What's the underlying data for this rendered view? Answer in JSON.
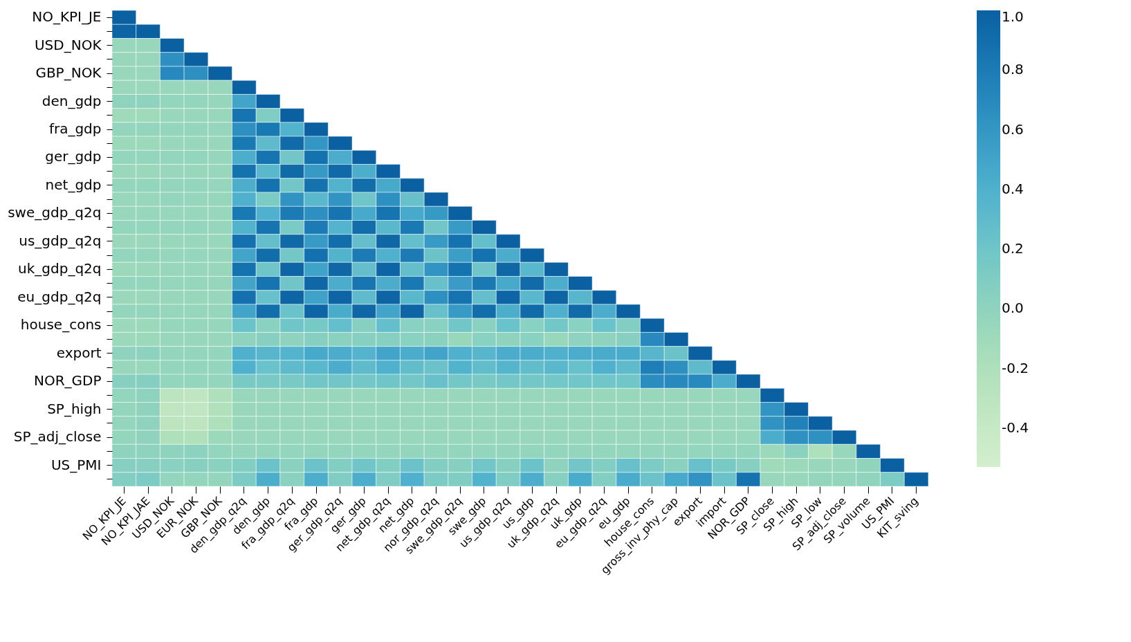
{
  "chart_data": {
    "type": "heatmap",
    "categories": [
      "NO_KPI_JE",
      "NO_KPI_JAE",
      "USD_NOK",
      "EUR_NOK",
      "GBP_NOK",
      "den_gdp_q2q",
      "den_gdp",
      "fra_gdp_q2q",
      "fra_gdp",
      "ger_gdp_q2q",
      "ger_gdp",
      "net_gdp_q2q",
      "net_gdp",
      "nor_gdp_q2q",
      "swe_gdp_q2q",
      "swe_gdp",
      "us_gdp_q2q",
      "us_gdp",
      "uk_gdp_q2q",
      "uk_gdp",
      "eu_gdp_q2q",
      "eu_gdp",
      "house_cons",
      "gross_inv_phy_cap",
      "export",
      "import",
      "NOR_GDP",
      "SP_close",
      "SP_high",
      "SP_low",
      "SP_adj_close",
      "SP_volume",
      "US_PMI",
      "KIT_sving"
    ],
    "y_categories": [
      "NO_KPI_JE",
      null,
      "USD_NOK",
      null,
      "GBP_NOK",
      null,
      "den_gdp",
      null,
      "fra_gdp",
      null,
      "ger_gdp",
      null,
      "net_gdp",
      null,
      "swe_gdp_q2q",
      null,
      "us_gdp_q2q",
      null,
      "uk_gdp_q2q",
      null,
      "eu_gdp_q2q",
      null,
      "house_cons",
      null,
      "export",
      null,
      "NOR_GDP",
      null,
      "SP_high",
      null,
      "SP_adj_close",
      null,
      "US_PMI",
      null
    ],
    "clim": [
      -0.53,
      1.0
    ],
    "cticks": [
      {
        "value": -0.4,
        "label": "-0.4"
      },
      {
        "value": -0.2,
        "label": "-0.2"
      },
      {
        "value": 0,
        "label": "0.0"
      },
      {
        "value": 0.2,
        "label": "0.2"
      },
      {
        "value": 0.4,
        "label": "0.4"
      },
      {
        "value": 0.6,
        "label": "0.6"
      },
      {
        "value": 0.8,
        "label": "0.8"
      },
      {
        "value": 1,
        "label": "1.0"
      }
    ],
    "cells": [
      [
        1,
        null,
        null,
        null,
        null,
        null,
        null,
        null,
        null,
        null,
        null,
        null,
        null,
        null,
        null,
        null,
        null,
        null,
        null,
        null,
        null,
        null,
        null,
        null,
        null,
        null,
        null,
        null,
        null,
        null,
        null,
        null,
        null,
        null
      ],
      [
        0.97,
        1,
        null,
        null,
        null,
        null,
        null,
        null,
        null,
        null,
        null,
        null,
        null,
        null,
        null,
        null,
        null,
        null,
        null,
        null,
        null,
        null,
        null,
        null,
        null,
        null,
        null,
        null,
        null,
        null,
        null,
        null,
        null,
        null
      ],
      [
        -0.05,
        -0.05,
        1,
        null,
        null,
        null,
        null,
        null,
        null,
        null,
        null,
        null,
        null,
        null,
        null,
        null,
        null,
        null,
        null,
        null,
        null,
        null,
        null,
        null,
        null,
        null,
        null,
        null,
        null,
        null,
        null,
        null,
        null,
        null
      ],
      [
        -0.05,
        -0.05,
        0.65,
        1,
        null,
        null,
        null,
        null,
        null,
        null,
        null,
        null,
        null,
        null,
        null,
        null,
        null,
        null,
        null,
        null,
        null,
        null,
        null,
        null,
        null,
        null,
        null,
        null,
        null,
        null,
        null,
        null,
        null,
        null
      ],
      [
        -0.05,
        -0.05,
        0.7,
        0.65,
        1,
        null,
        null,
        null,
        null,
        null,
        null,
        null,
        null,
        null,
        null,
        null,
        null,
        null,
        null,
        null,
        null,
        null,
        null,
        null,
        null,
        null,
        null,
        null,
        null,
        null,
        null,
        null,
        null,
        null
      ],
      [
        -0.07,
        -0.07,
        -0.05,
        -0.05,
        -0.05,
        1,
        null,
        null,
        null,
        null,
        null,
        null,
        null,
        null,
        null,
        null,
        null,
        null,
        null,
        null,
        null,
        null,
        null,
        null,
        null,
        null,
        null,
        null,
        null,
        null,
        null,
        null,
        null,
        null
      ],
      [
        0.0,
        0.0,
        -0.03,
        -0.02,
        -0.04,
        0.5,
        1,
        null,
        null,
        null,
        null,
        null,
        null,
        null,
        null,
        null,
        null,
        null,
        null,
        null,
        null,
        null,
        null,
        null,
        null,
        null,
        null,
        null,
        null,
        null,
        null,
        null,
        null,
        null
      ],
      [
        -0.1,
        -0.1,
        -0.05,
        -0.05,
        -0.05,
        0.85,
        0.1,
        1,
        null,
        null,
        null,
        null,
        null,
        null,
        null,
        null,
        null,
        null,
        null,
        null,
        null,
        null,
        null,
        null,
        null,
        null,
        null,
        null,
        null,
        null,
        null,
        null,
        null,
        null
      ],
      [
        -0.02,
        -0.02,
        -0.03,
        -0.03,
        -0.04,
        0.65,
        0.82,
        0.38,
        1,
        null,
        null,
        null,
        null,
        null,
        null,
        null,
        null,
        null,
        null,
        null,
        null,
        null,
        null,
        null,
        null,
        null,
        null,
        null,
        null,
        null,
        null,
        null,
        null,
        null
      ],
      [
        -0.08,
        -0.08,
        -0.05,
        -0.05,
        -0.05,
        0.82,
        0.3,
        0.92,
        0.6,
        1,
        null,
        null,
        null,
        null,
        null,
        null,
        null,
        null,
        null,
        null,
        null,
        null,
        null,
        null,
        null,
        null,
        null,
        null,
        null,
        null,
        null,
        null,
        null,
        null
      ],
      [
        -0.02,
        -0.02,
        -0.03,
        -0.03,
        -0.04,
        0.42,
        0.85,
        0.18,
        0.87,
        0.43,
        1,
        null,
        null,
        null,
        null,
        null,
        null,
        null,
        null,
        null,
        null,
        null,
        null,
        null,
        null,
        null,
        null,
        null,
        null,
        null,
        null,
        null,
        null,
        null
      ],
      [
        -0.07,
        -0.07,
        -0.05,
        -0.05,
        -0.05,
        0.87,
        0.33,
        0.93,
        0.58,
        0.93,
        0.42,
        1,
        null,
        null,
        null,
        null,
        null,
        null,
        null,
        null,
        null,
        null,
        null,
        null,
        null,
        null,
        null,
        null,
        null,
        null,
        null,
        null,
        null,
        null
      ],
      [
        -0.02,
        -0.02,
        -0.03,
        -0.03,
        -0.04,
        0.42,
        0.87,
        0.18,
        0.87,
        0.38,
        0.9,
        0.45,
        1,
        null,
        null,
        null,
        null,
        null,
        null,
        null,
        null,
        null,
        null,
        null,
        null,
        null,
        null,
        null,
        null,
        null,
        null,
        null,
        null,
        null
      ],
      [
        -0.05,
        -0.05,
        -0.03,
        -0.04,
        -0.04,
        0.4,
        0.12,
        0.63,
        0.33,
        0.62,
        0.2,
        0.65,
        0.25,
        1,
        null,
        null,
        null,
        null,
        null,
        null,
        null,
        null,
        null,
        null,
        null,
        null,
        null,
        null,
        null,
        null,
        null,
        null,
        null,
        null
      ],
      [
        -0.06,
        -0.06,
        -0.05,
        -0.05,
        -0.05,
        0.82,
        0.4,
        0.8,
        0.65,
        0.85,
        0.45,
        0.85,
        0.45,
        0.58,
        1,
        null,
        null,
        null,
        null,
        null,
        null,
        null,
        null,
        null,
        null,
        null,
        null,
        null,
        null,
        null,
        null,
        null,
        null,
        null
      ],
      [
        -0.02,
        -0.02,
        -0.03,
        -0.03,
        -0.04,
        0.38,
        0.85,
        0.13,
        0.8,
        0.37,
        0.9,
        0.33,
        0.82,
        0.18,
        0.57,
        1,
        null,
        null,
        null,
        null,
        null,
        null,
        null,
        null,
        null,
        null,
        null,
        null,
        null,
        null,
        null,
        null,
        null,
        null
      ],
      [
        -0.07,
        -0.07,
        -0.05,
        -0.05,
        -0.05,
        0.88,
        0.27,
        0.93,
        0.57,
        0.9,
        0.27,
        0.95,
        0.27,
        0.57,
        0.87,
        0.27,
        1,
        null,
        null,
        null,
        null,
        null,
        null,
        null,
        null,
        null,
        null,
        null,
        null,
        null,
        null,
        null,
        null,
        null
      ],
      [
        -0.03,
        -0.03,
        -0.04,
        -0.04,
        -0.04,
        0.5,
        0.9,
        0.17,
        0.88,
        0.38,
        0.8,
        0.4,
        0.8,
        0.22,
        0.55,
        0.87,
        0.43,
        1,
        null,
        null,
        null,
        null,
        null,
        null,
        null,
        null,
        null,
        null,
        null,
        null,
        null,
        null,
        null,
        null
      ],
      [
        -0.08,
        -0.07,
        -0.05,
        -0.05,
        -0.05,
        0.87,
        0.2,
        0.96,
        0.52,
        0.95,
        0.27,
        0.96,
        0.27,
        0.62,
        0.86,
        0.2,
        0.95,
        0.33,
        1,
        null,
        null,
        null,
        null,
        null,
        null,
        null,
        null,
        null,
        null,
        null,
        null,
        null,
        null,
        null
      ],
      [
        -0.03,
        -0.03,
        -0.04,
        -0.04,
        -0.04,
        0.5,
        0.85,
        0.2,
        0.95,
        0.43,
        0.84,
        0.43,
        0.82,
        0.25,
        0.56,
        0.82,
        0.45,
        0.92,
        0.42,
        1,
        null,
        null,
        null,
        null,
        null,
        null,
        null,
        null,
        null,
        null,
        null,
        null,
        null,
        null
      ],
      [
        -0.07,
        -0.07,
        -0.05,
        -0.05,
        -0.05,
        0.88,
        0.25,
        0.96,
        0.52,
        0.96,
        0.3,
        0.96,
        0.33,
        0.65,
        0.86,
        0.27,
        0.96,
        0.33,
        0.96,
        0.35,
        1,
        null,
        null,
        null,
        null,
        null,
        null,
        null,
        null,
        null,
        null,
        null,
        null,
        null
      ],
      [
        -0.03,
        -0.03,
        -0.04,
        -0.04,
        -0.04,
        0.5,
        0.9,
        0.23,
        0.96,
        0.44,
        0.95,
        0.5,
        0.96,
        0.25,
        0.57,
        0.9,
        0.42,
        0.92,
        0.4,
        0.92,
        0.43,
        1,
        null,
        null,
        null,
        null,
        null,
        null,
        null,
        null,
        null,
        null,
        null,
        null
      ],
      [
        -0.08,
        -0.08,
        -0.04,
        -0.04,
        -0.04,
        0.23,
        0.03,
        0.2,
        0.15,
        0.27,
        0.05,
        0.27,
        0.04,
        0.04,
        0.18,
        0.03,
        0.23,
        0.04,
        0.17,
        0.04,
        0.23,
        0.08,
        1,
        null,
        null,
        null,
        null,
        null,
        null,
        null,
        null,
        null,
        null,
        null
      ],
      [
        -0.08,
        -0.08,
        -0.05,
        -0.05,
        -0.05,
        0.0,
        0.05,
        0.0,
        0.05,
        0.03,
        0.05,
        0.05,
        0.04,
        0.03,
        -0.06,
        0.04,
        0.0,
        0.04,
        -0.05,
        0.01,
        0.0,
        0.06,
        0.7,
        1,
        null,
        null,
        null,
        null,
        null,
        null,
        null,
        null,
        null,
        null
      ],
      [
        0.0,
        0.02,
        -0.03,
        -0.03,
        -0.03,
        0.4,
        0.35,
        0.37,
        0.45,
        0.43,
        0.37,
        0.5,
        0.43,
        0.5,
        0.4,
        0.35,
        0.43,
        0.43,
        0.4,
        0.43,
        0.44,
        0.44,
        0.35,
        0.22,
        1,
        null,
        null,
        null,
        null,
        null,
        null,
        null,
        null,
        null
      ],
      [
        -0.05,
        -0.06,
        -0.03,
        -0.03,
        -0.03,
        0.4,
        0.23,
        0.3,
        0.33,
        0.43,
        0.3,
        0.4,
        0.28,
        0.22,
        0.38,
        0.28,
        0.36,
        0.28,
        0.33,
        0.25,
        0.4,
        0.3,
        0.78,
        0.65,
        0.3,
        1,
        null,
        null,
        null,
        null,
        null,
        null,
        null,
        null
      ],
      [
        0.05,
        0.07,
        -0.02,
        -0.02,
        -0.02,
        0.14,
        0.14,
        0.14,
        0.18,
        0.18,
        0.17,
        0.2,
        0.17,
        0.25,
        0.17,
        0.14,
        0.17,
        0.17,
        0.17,
        0.19,
        0.19,
        0.19,
        0.67,
        0.7,
        0.7,
        0.43,
        1,
        null,
        null,
        null,
        null,
        null,
        null,
        null
      ],
      [
        -0.02,
        0.0,
        -0.3,
        -0.33,
        -0.2,
        -0.05,
        -0.05,
        -0.05,
        -0.05,
        -0.05,
        -0.05,
        -0.05,
        -0.05,
        -0.05,
        -0.05,
        -0.05,
        -0.05,
        -0.05,
        -0.05,
        -0.05,
        -0.05,
        -0.05,
        -0.05,
        -0.05,
        -0.05,
        -0.05,
        -0.05,
        1,
        null,
        null,
        null,
        null,
        null,
        null
      ],
      [
        -0.02,
        0.0,
        -0.33,
        -0.35,
        -0.22,
        -0.05,
        -0.05,
        -0.05,
        -0.05,
        -0.05,
        -0.05,
        -0.05,
        -0.05,
        -0.05,
        -0.05,
        -0.05,
        -0.05,
        -0.05,
        -0.05,
        -0.05,
        -0.05,
        -0.05,
        -0.05,
        -0.05,
        -0.05,
        -0.05,
        -0.05,
        0.62,
        1,
        null,
        null,
        null,
        null,
        null
      ],
      [
        -0.02,
        0.0,
        -0.3,
        -0.32,
        -0.2,
        -0.05,
        -0.05,
        -0.05,
        -0.05,
        -0.05,
        -0.05,
        -0.05,
        -0.05,
        -0.05,
        -0.05,
        -0.05,
        -0.05,
        -0.05,
        -0.05,
        -0.05,
        -0.05,
        -0.05,
        -0.05,
        -0.05,
        -0.05,
        -0.05,
        -0.05,
        0.63,
        0.75,
        1,
        null,
        null,
        null,
        null
      ],
      [
        -0.02,
        0.0,
        -0.2,
        -0.22,
        -0.08,
        -0.05,
        -0.05,
        -0.05,
        -0.05,
        -0.05,
        -0.05,
        -0.05,
        -0.05,
        -0.05,
        -0.05,
        -0.05,
        -0.05,
        -0.05,
        -0.05,
        -0.05,
        -0.05,
        -0.05,
        -0.05,
        -0.05,
        -0.05,
        -0.05,
        -0.05,
        0.43,
        0.64,
        0.64,
        1,
        null,
        null,
        null
      ],
      [
        0.0,
        0.0,
        0.0,
        0.02,
        -0.03,
        -0.03,
        -0.03,
        -0.03,
        -0.03,
        -0.03,
        -0.03,
        -0.03,
        -0.03,
        -0.03,
        -0.03,
        -0.03,
        -0.03,
        -0.03,
        -0.03,
        -0.03,
        -0.03,
        -0.03,
        -0.03,
        -0.03,
        -0.03,
        -0.03,
        -0.03,
        -0.08,
        0.03,
        -0.2,
        -0.06,
        1,
        null,
        null
      ],
      [
        0.05,
        0.05,
        0.04,
        0.05,
        0.03,
        0.08,
        0.22,
        0.03,
        0.22,
        0.08,
        0.2,
        0.08,
        0.22,
        0.08,
        0.05,
        0.18,
        0.05,
        0.22,
        0.0,
        0.18,
        0.08,
        0.25,
        0.12,
        0.03,
        0.25,
        0.14,
        0.05,
        -0.1,
        -0.08,
        -0.06,
        -0.05,
        -0.01,
        1,
        null
      ],
      [
        0.08,
        0.12,
        -0.02,
        -0.02,
        -0.02,
        0.12,
        0.42,
        0.03,
        0.42,
        0.1,
        0.42,
        0.1,
        0.4,
        0.12,
        0.1,
        0.38,
        0.1,
        0.42,
        0.05,
        0.44,
        0.08,
        0.44,
        0.22,
        0.45,
        0.63,
        0.22,
        0.86,
        -0.05,
        -0.05,
        -0.03,
        -0.03,
        -0.01,
        0.12,
        1
      ]
    ]
  }
}
